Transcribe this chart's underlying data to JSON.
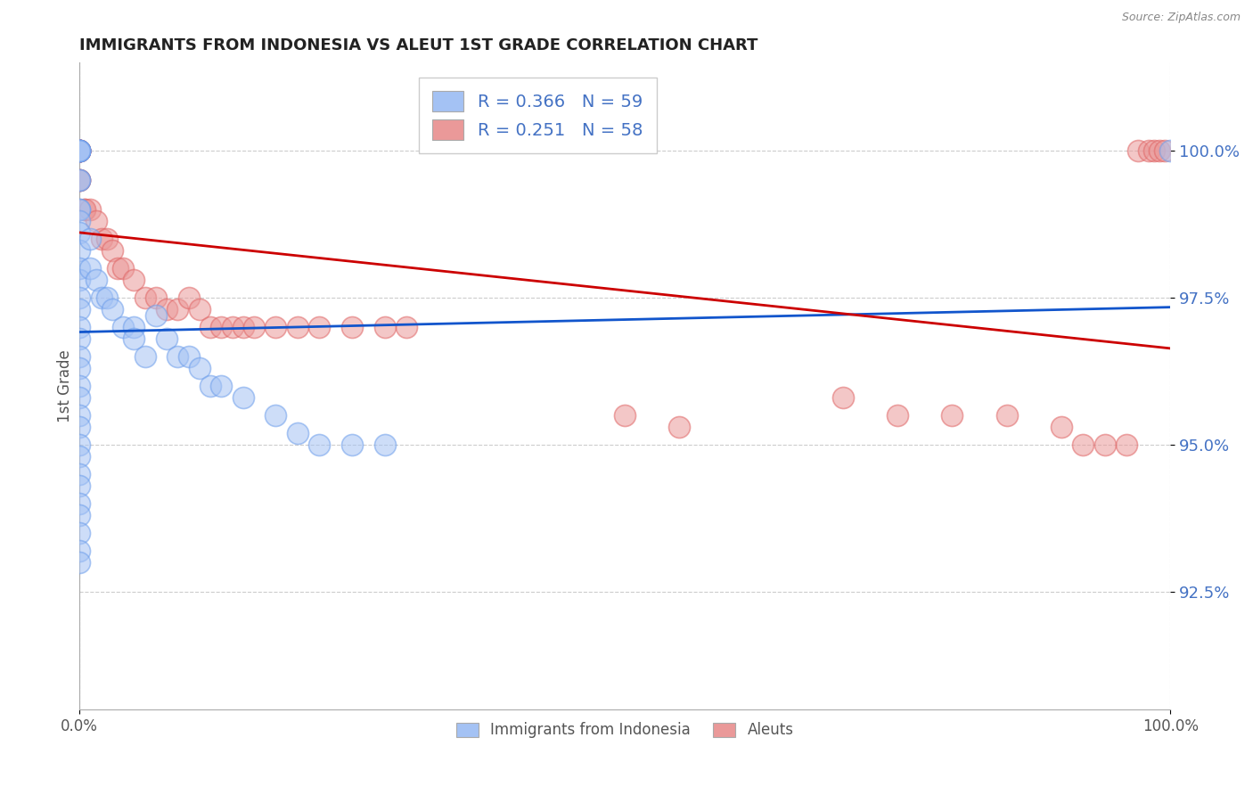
{
  "title": "IMMIGRANTS FROM INDONESIA VS ALEUT 1ST GRADE CORRELATION CHART",
  "source_text": "Source: ZipAtlas.com",
  "ylabel": "1st Grade",
  "x_min": 0.0,
  "x_max": 100.0,
  "y_min": 90.5,
  "y_max": 101.5,
  "y_ticks": [
    92.5,
    95.0,
    97.5,
    100.0
  ],
  "y_tick_labels": [
    "92.5%",
    "95.0%",
    "97.5%",
    "100.0%"
  ],
  "x_tick_labels": [
    "0.0%",
    "100.0%"
  ],
  "legend_label1": "Immigrants from Indonesia",
  "legend_label2": "Aleuts",
  "R1": 0.366,
  "N1": 59,
  "R2": 0.251,
  "N2": 58,
  "blue_color": "#a4c2f4",
  "pink_color": "#ea9999",
  "blue_edge_color": "#6d9eeb",
  "pink_edge_color": "#e06666",
  "blue_line_color": "#1155cc",
  "pink_line_color": "#cc0000",
  "blue_scatter_x": [
    0.0,
    0.0,
    0.0,
    0.0,
    0.0,
    0.0,
    0.0,
    0.0,
    0.0,
    0.0,
    0.0,
    0.0,
    0.0,
    0.0,
    0.0,
    0.0,
    0.0,
    0.0,
    0.0,
    0.0,
    0.0,
    0.0,
    0.0,
    0.0,
    0.0,
    0.0,
    0.0,
    0.0,
    0.0,
    0.0,
    0.0,
    0.0,
    0.0,
    0.0,
    0.0,
    1.0,
    1.0,
    1.5,
    2.0,
    2.5,
    3.0,
    4.0,
    5.0,
    5.0,
    6.0,
    7.0,
    8.0,
    9.0,
    10.0,
    11.0,
    12.0,
    13.0,
    15.0,
    18.0,
    20.0,
    22.0,
    25.0,
    28.0,
    100.0
  ],
  "blue_scatter_y": [
    100.0,
    100.0,
    100.0,
    100.0,
    100.0,
    100.0,
    100.0,
    99.5,
    99.5,
    99.0,
    99.0,
    98.8,
    98.6,
    98.3,
    98.0,
    97.8,
    97.5,
    97.3,
    97.0,
    96.8,
    96.5,
    96.3,
    96.0,
    95.8,
    95.5,
    95.3,
    95.0,
    94.8,
    94.5,
    94.3,
    94.0,
    93.8,
    93.5,
    93.2,
    93.0,
    98.5,
    98.0,
    97.8,
    97.5,
    97.5,
    97.3,
    97.0,
    97.0,
    96.8,
    96.5,
    97.2,
    96.8,
    96.5,
    96.5,
    96.3,
    96.0,
    96.0,
    95.8,
    95.5,
    95.2,
    95.0,
    95.0,
    95.0,
    100.0
  ],
  "pink_scatter_x": [
    0.0,
    0.0,
    0.0,
    0.0,
    0.0,
    0.0,
    0.0,
    0.0,
    0.0,
    0.0,
    0.0,
    0.0,
    0.0,
    0.0,
    0.0,
    0.0,
    0.5,
    0.5,
    1.0,
    1.5,
    2.0,
    2.5,
    3.0,
    3.5,
    4.0,
    5.0,
    6.0,
    7.0,
    8.0,
    9.0,
    10.0,
    11.0,
    12.0,
    13.0,
    14.0,
    15.0,
    16.0,
    18.0,
    20.0,
    22.0,
    25.0,
    28.0,
    30.0,
    50.0,
    55.0,
    70.0,
    75.0,
    80.0,
    85.0,
    90.0,
    92.0,
    94.0,
    96.0,
    97.0,
    98.0,
    98.5,
    99.0,
    99.5
  ],
  "pink_scatter_y": [
    100.0,
    100.0,
    100.0,
    100.0,
    100.0,
    100.0,
    100.0,
    100.0,
    100.0,
    100.0,
    100.0,
    100.0,
    100.0,
    99.5,
    99.5,
    99.5,
    99.0,
    99.0,
    99.0,
    98.8,
    98.5,
    98.5,
    98.3,
    98.0,
    98.0,
    97.8,
    97.5,
    97.5,
    97.3,
    97.3,
    97.5,
    97.3,
    97.0,
    97.0,
    97.0,
    97.0,
    97.0,
    97.0,
    97.0,
    97.0,
    97.0,
    97.0,
    97.0,
    95.5,
    95.3,
    95.8,
    95.5,
    95.5,
    95.5,
    95.3,
    95.0,
    95.0,
    95.0,
    100.0,
    100.0,
    100.0,
    100.0,
    100.0
  ]
}
